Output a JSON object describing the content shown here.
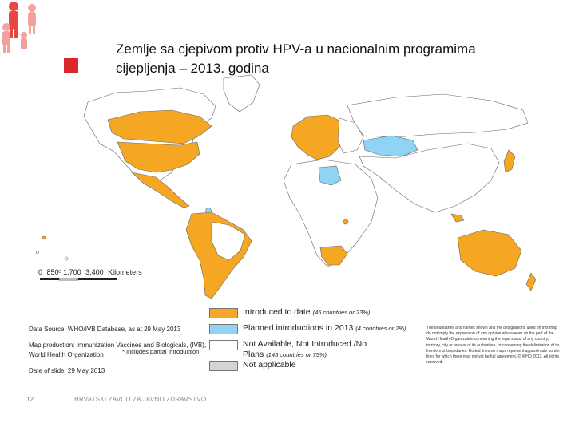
{
  "slide": {
    "title_line1": "Zemlje sa cjepivom protiv HPV-a u nacionalnim programima",
    "title_line2": "cijepljenja – 2013. godina"
  },
  "colors": {
    "introduced": "#f5a623",
    "planned": "#8fd4f5",
    "not_available": "#ffffff",
    "not_applicable": "#d4d4d4",
    "accent_red": "#d9272e",
    "logo_red": "#e8463f"
  },
  "scale": {
    "ticks": [
      "0",
      "850",
      "1,700",
      "3,400"
    ],
    "unit": "Kilometers"
  },
  "legend": {
    "introduced": {
      "label": "Introduced to date",
      "note": "(45 countries or 23%)"
    },
    "planned": {
      "label": "Planned introductions in 2013",
      "note": "(4 countries or 2%)"
    },
    "not_available_line1": "Not Available, Not Introduced /No",
    "not_available_line2": "Plans",
    "not_available_note": "(145 countries or 75%)",
    "not_applicable": {
      "label": "Not applicable"
    }
  },
  "source": {
    "data_source": "Data Source: WHO/IVB Database, as at 29 May 2013",
    "map_production": "Map production: Immunization Vaccines and Biologicals, (IVB), World Health Organization",
    "date_of_slide": "Date of slide: 29 May 2013",
    "partial_note": "* Includes partial introduction"
  },
  "disclaimer": "The boundaries and names shown and the designations used on this map do not imply the expression of any opinion whatsoever on the part of the World Health Organization concerning the legal status of any country, territory, city or area or of its authorities, or concerning the delimitation of its frontiers or boundaries. Dotted lines on maps represent approximate border lines for which there may not yet be full agreement. © WHO 2013. All rights reserved.",
  "footer": {
    "page_number": "12",
    "organization": "HRVATSKI ZAVOD ZA JAVNO ZDRAVSTVO"
  }
}
